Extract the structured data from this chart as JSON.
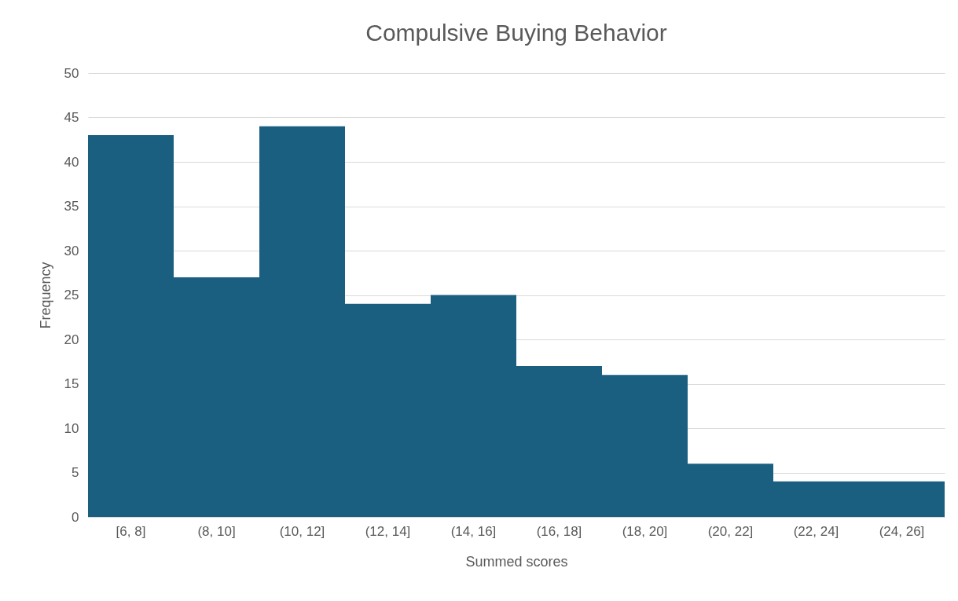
{
  "chart_data": {
    "type": "bar",
    "title": "Compulsive Buying Behavior",
    "xlabel": "Summed scores",
    "ylabel": "Frequency",
    "categories": [
      "[6, 8]",
      "(8, 10]",
      "(10, 12]",
      "(12, 14]",
      "(14, 16]",
      "(16, 18]",
      "(18, 20]",
      "(20, 22]",
      "(22, 24]",
      "(24, 26]"
    ],
    "values": [
      43,
      27,
      44,
      24,
      25,
      17,
      16,
      6,
      4,
      4
    ],
    "color": "#1a5f80",
    "ylim": [
      0,
      50
    ],
    "yticks": [
      0,
      5,
      10,
      15,
      20,
      25,
      30,
      35,
      40,
      45,
      50
    ],
    "grid": "y"
  }
}
